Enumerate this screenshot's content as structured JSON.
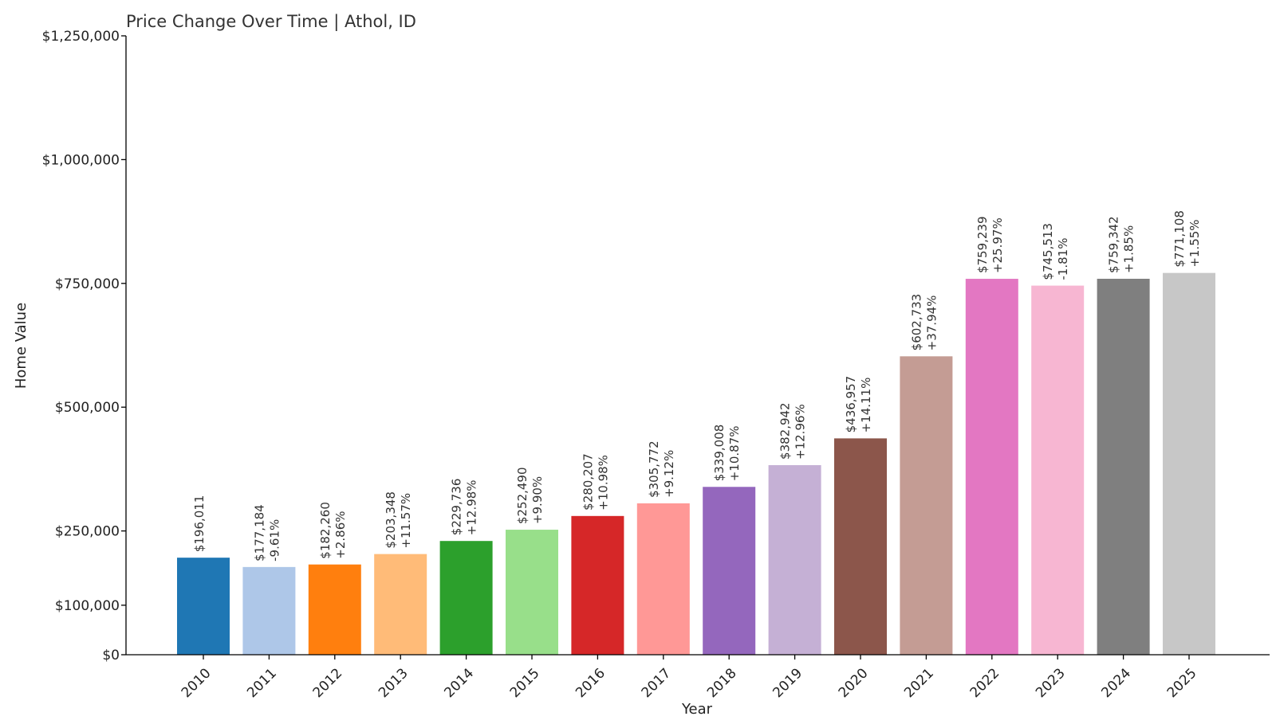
{
  "chart_data": {
    "type": "bar",
    "title": "Price Change Over Time | Athol, ID",
    "xlabel": "Year",
    "ylabel": "Home Value",
    "categories": [
      "2010",
      "2011",
      "2012",
      "2013",
      "2014",
      "2015",
      "2016",
      "2017",
      "2018",
      "2019",
      "2020",
      "2021",
      "2022",
      "2023",
      "2024",
      "2025"
    ],
    "values": [
      196011,
      177184,
      182260,
      203348,
      229736,
      252490,
      280207,
      305772,
      339008,
      382942,
      436957,
      602733,
      759239,
      745513,
      759342,
      771108
    ],
    "value_labels": [
      "$196,011",
      "$177,184",
      "$182,260",
      "$203,348",
      "$229,736",
      "$252,490",
      "$280,207",
      "$305,772",
      "$339,008",
      "$382,942",
      "$436,957",
      "$602,733",
      "$759,239",
      "$745,513",
      "$759,342",
      "$771,108"
    ],
    "change_labels": [
      "",
      "-9.61%",
      "+2.86%",
      "+11.57%",
      "+12.98%",
      "+9.90%",
      "+10.98%",
      "+9.12%",
      "+10.87%",
      "+12.96%",
      "+14.11%",
      "+37.94%",
      "+25.97%",
      "-1.81%",
      "+1.85%",
      "+1.55%"
    ],
    "colors": [
      "#1f77b4",
      "#aec7e8",
      "#ff7f0e",
      "#ffbb78",
      "#2ca02c",
      "#98df8a",
      "#d62728",
      "#ff9896",
      "#9467bd",
      "#c5b0d5",
      "#8c564b",
      "#c49c94",
      "#e377c2",
      "#f7b6d2",
      "#7f7f7f",
      "#c7c7c7"
    ],
    "ylim": [
      0,
      1250000
    ],
    "y_ticks": [
      {
        "value": 0,
        "label": "$0"
      },
      {
        "value": 100000,
        "label": "$100,000"
      },
      {
        "value": 250000,
        "label": "$250,000"
      },
      {
        "value": 500000,
        "label": "$500,000"
      },
      {
        "value": 750000,
        "label": "$750,000"
      },
      {
        "value": 1000000,
        "label": "$1,000,000"
      },
      {
        "value": 1250000,
        "label": "$1,250,000"
      }
    ],
    "grid": false,
    "legend": "none"
  }
}
